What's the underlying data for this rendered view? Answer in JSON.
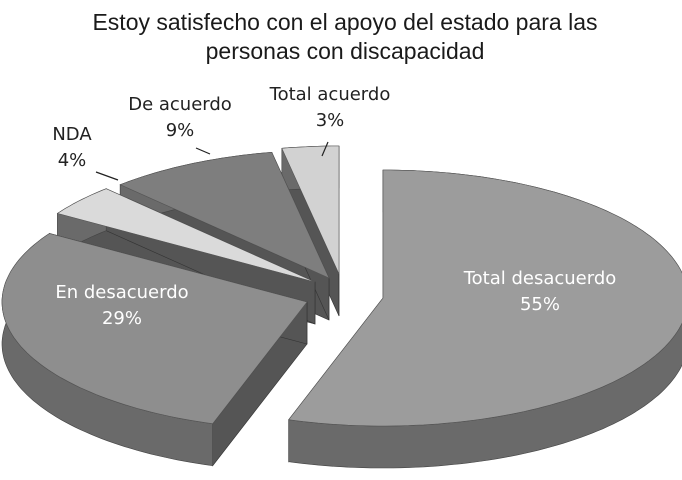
{
  "chart_data": {
    "type": "pie",
    "title": "Estoy satisfecho con el apoyo del estado para las personas con discapacidad",
    "categories": [
      "Total desacuerdo",
      "En desacuerdo",
      "NDA",
      "De acuerdo",
      "Total acuerdo"
    ],
    "values": [
      55,
      29,
      4,
      9,
      3
    ],
    "value_labels": [
      "55%",
      "29%",
      "4%",
      "9%",
      "3%"
    ],
    "colors": [
      "#9c9c9c",
      "#8e8e8e",
      "#dadada",
      "#7e7e7e",
      "#d2d2d2"
    ]
  }
}
